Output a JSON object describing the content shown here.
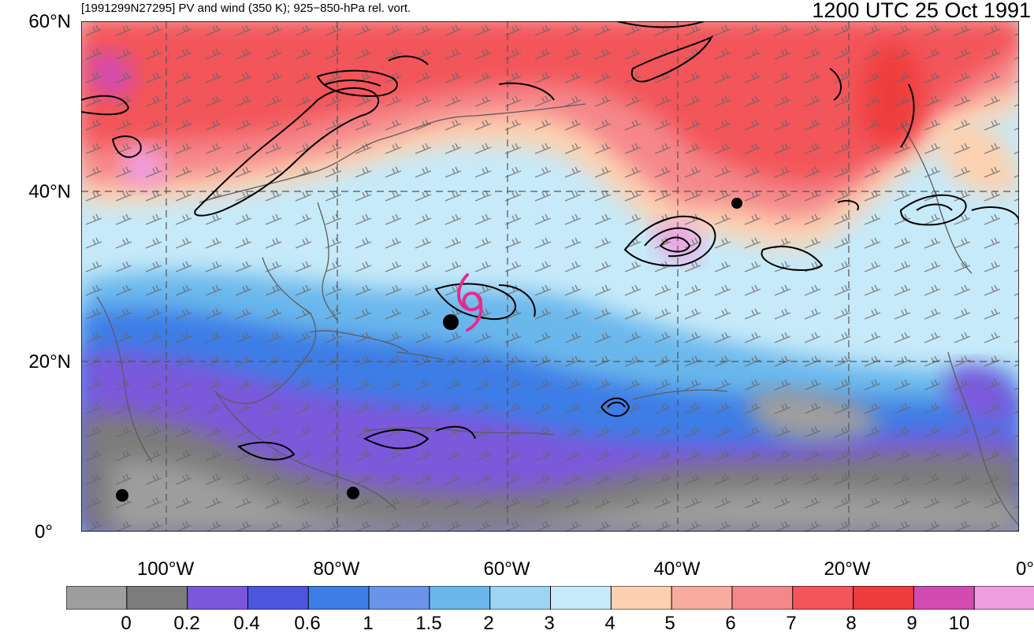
{
  "header": {
    "left_title": "[1991299N27295] PV and wind (350 K); 925−850-hPa rel. vort.",
    "right_title": "1200 UTC 25 Oct 1991"
  },
  "lat_labels": [
    "60°N",
    "40°N",
    "20°N",
    "0°"
  ],
  "lon_labels": [
    "100°W",
    "80°W",
    "60°W",
    "40°W",
    "20°W",
    "0°"
  ],
  "colorbar": {
    "labels": [
      "0",
      "0.2",
      "0.4",
      "0.6",
      "1",
      "1.5",
      "2",
      "3",
      "4",
      "5",
      "6",
      "7",
      "8",
      "9",
      "10"
    ],
    "colors": [
      "#9e9e9e",
      "#7c7c7c",
      "#7b58db",
      "#4b55de",
      "#3d7de6",
      "#6a94ea",
      "#6bb7ec",
      "#9dd4f3",
      "#c6eaf9",
      "#fcd1b1",
      "#f9aba0",
      "#f5878a",
      "#f2555a",
      "#ef3c3c",
      "#d24bb1",
      "#ef9ee0"
    ]
  },
  "map": {
    "lat_range": [
      0,
      60
    ],
    "lon_range": [
      -110,
      0
    ],
    "storm_symbol": "tropical-cyclone-icon",
    "storm_color": "#e52b8e",
    "storm_lat": 27,
    "storm_lon": -65
  }
}
